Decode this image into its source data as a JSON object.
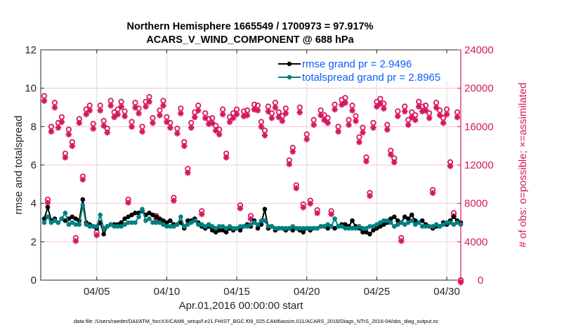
{
  "chart_data": {
    "type": "line",
    "title_lines": [
      "Northern Hemisphere 1665549 / 1700973 = 97.917%",
      "ACARS_V_WIND_COMPONENT @ 688 hPa"
    ],
    "xlabel": "Apr.01,2016 00:00:00 start",
    "ylabel_left": "rmse and totalspread",
    "ylabel_right": "# of obs: o=possible; ×=assimilated",
    "footnote": "data file: /Users/raeder/DAI/ATM_forcXX/CAM6_setup/f.e21.FHIST_BGC.f09_025.CAM6assim.011/ACARS_2016/Diags_NTrS_2016-04/obs_diag_output.nc",
    "x_unit": "days since Apr.01,2016 00:00:00",
    "xlim": [
      0,
      30
    ],
    "x_ticks": [
      4,
      9,
      14,
      19,
      24,
      29
    ],
    "x_tick_labels": [
      "04/05",
      "04/10",
      "04/15",
      "04/20",
      "04/25",
      "04/30"
    ],
    "ylim_left": [
      0,
      12
    ],
    "y_ticks_left": [
      0,
      2,
      4,
      6,
      8,
      10,
      12
    ],
    "ylim_right": [
      0,
      24000
    ],
    "y_ticks_right": [
      0,
      4000,
      8000,
      12000,
      16000,
      20000,
      24000
    ],
    "grid": true,
    "legend_position": "top-right",
    "colors": {
      "rmse": "#000000",
      "totalspread": "#008080",
      "obs": "#D6175F",
      "legend_text": "#0B5BFF",
      "right_axis": "#D6175F"
    },
    "x_step_days": 0.25,
    "x_start_day": 0.25,
    "series": [
      {
        "name": "rmse grand pr = 2.9496",
        "axis": "left",
        "values": [
          3.2,
          3.8,
          3.1,
          3.2,
          3.0,
          3.2,
          3.1,
          3.2,
          3.3,
          3.2,
          3.1,
          4.2,
          3.0,
          2.9,
          2.8,
          2.7,
          3.0,
          2.4,
          2.8,
          2.9,
          2.9,
          2.9,
          3.0,
          3.2,
          3.3,
          3.4,
          3.5,
          3.5,
          3.6,
          3.4,
          3.5,
          3.4,
          3.3,
          3.2,
          3.1,
          3.0,
          3.1,
          2.9,
          2.9,
          3.0,
          2.7,
          3.1,
          3.1,
          3.2,
          3.0,
          2.8,
          2.7,
          2.8,
          2.6,
          2.5,
          2.6,
          2.6,
          2.5,
          2.7,
          2.6,
          2.7,
          2.6,
          2.8,
          2.9,
          2.8,
          3.1,
          2.7,
          2.9,
          3.7,
          2.7,
          2.8,
          2.6,
          2.7,
          2.7,
          2.6,
          2.7,
          2.6,
          2.7,
          2.6,
          2.5,
          2.7,
          2.6,
          2.7,
          2.7,
          2.8,
          2.8,
          2.7,
          2.8,
          2.7,
          2.8,
          2.9,
          2.9,
          2.8,
          3.1,
          2.8,
          2.7,
          2.5,
          2.5,
          2.4,
          2.6,
          2.7,
          2.8,
          2.9,
          3.0,
          3.2,
          3.3,
          3.1,
          3.0,
          3.3,
          3.2,
          3.4,
          3.1,
          3.0,
          3.1,
          2.9,
          2.8,
          2.7,
          2.8,
          2.8,
          3.0,
          2.9,
          3.1,
          3.3,
          3.1,
          3.0
        ]
      },
      {
        "name": "totalspread grand pr = 2.8965",
        "axis": "left",
        "values": [
          3.0,
          3.3,
          3.0,
          3.1,
          3.0,
          3.2,
          3.5,
          2.9,
          3.0,
          2.9,
          2.9,
          3.9,
          2.9,
          2.8,
          2.8,
          2.8,
          3.4,
          2.7,
          2.8,
          2.9,
          2.8,
          2.8,
          2.8,
          2.9,
          3.0,
          3.0,
          3.0,
          3.3,
          3.7,
          3.1,
          3.2,
          3.0,
          3.0,
          3.0,
          2.9,
          2.8,
          2.8,
          2.8,
          2.9,
          3.3,
          2.8,
          2.9,
          3.0,
          3.1,
          2.9,
          2.9,
          2.8,
          2.9,
          2.8,
          2.7,
          2.8,
          2.8,
          2.7,
          2.8,
          2.7,
          2.7,
          2.8,
          2.8,
          2.8,
          2.9,
          3.0,
          2.9,
          3.1,
          3.1,
          2.8,
          2.8,
          2.7,
          2.7,
          2.7,
          2.7,
          2.7,
          2.8,
          2.7,
          2.7,
          2.7,
          2.7,
          2.7,
          2.7,
          2.7,
          2.8,
          2.8,
          2.9,
          2.8,
          3.2,
          2.8,
          2.8,
          2.7,
          2.7,
          2.7,
          2.7,
          2.8,
          2.7,
          2.7,
          2.8,
          2.8,
          2.9,
          3.0,
          3.1,
          3.1,
          3.0,
          2.8,
          2.9,
          3.0,
          2.9,
          3.0,
          3.1,
          2.9,
          3.0,
          2.8,
          2.8,
          2.8,
          2.8,
          2.9,
          2.8,
          2.9,
          3.0,
          3.0,
          2.9,
          3.0,
          2.9
        ]
      },
      {
        "name": "# obs possible",
        "axis": "right",
        "marker": "o",
        "values": [
          19200,
          8400,
          16000,
          18500,
          16400,
          17000,
          13200,
          15700,
          14400,
          4400,
          16800,
          10800,
          17800,
          18200,
          16300,
          5000,
          18200,
          16600,
          15800,
          18700,
          17500,
          17800,
          18600,
          17600,
          8400,
          16500,
          18500,
          17900,
          16000,
          18600,
          19100,
          16900,
          6700,
          17700,
          18700,
          17000,
          16400,
          8600,
          15800,
          17900,
          14400,
          11600,
          16400,
          17500,
          18200,
          7200,
          17400,
          16800,
          16900,
          16100,
          15700,
          17800,
          13200,
          17000,
          17400,
          17800,
          7800,
          17600,
          17700,
          6700,
          18300,
          18200,
          16500,
          15600,
          18100,
          17400,
          18500,
          17500,
          17100,
          17900,
          12500,
          13800,
          9900,
          18000,
          7900,
          15200,
          8300,
          16700,
          7300,
          17700,
          17200,
          16900,
          7200,
          18300,
          16000,
          18800,
          19000,
          16700,
          18200,
          17100,
          14900,
          15900,
          12800,
          9100,
          16400,
          18600,
          18900,
          18400,
          16200,
          13500,
          12700,
          17600,
          4400,
          18100,
          16700,
          17500,
          17200,
          18600,
          18100,
          18200,
          17400,
          9400,
          18500,
          17700,
          16900,
          17800,
          12300,
          7000,
          17500,
          0
        ]
      },
      {
        "name": "# obs assimilated",
        "axis": "right",
        "marker": "*",
        "values": [
          18900,
          8300,
          15700,
          18200,
          16100,
          16700,
          13000,
          15400,
          14200,
          4300,
          16600,
          10700,
          17500,
          17900,
          16000,
          4900,
          17900,
          16300,
          15600,
          18400,
          17200,
          17500,
          18300,
          17300,
          8300,
          16200,
          18200,
          17600,
          15700,
          18300,
          18800,
          16600,
          6600,
          17400,
          18400,
          16700,
          16100,
          8500,
          15500,
          17600,
          14200,
          11400,
          16100,
          17200,
          17900,
          7100,
          17100,
          16500,
          16600,
          15800,
          15400,
          17500,
          13000,
          16700,
          17100,
          17500,
          7700,
          17300,
          17400,
          6600,
          18000,
          17900,
          16200,
          15300,
          17800,
          17100,
          18200,
          17200,
          16800,
          17600,
          12300,
          13600,
          9800,
          17700,
          7800,
          14900,
          8200,
          16400,
          7200,
          17400,
          16900,
          16600,
          7100,
          18000,
          15700,
          18500,
          18700,
          16400,
          17900,
          16800,
          14600,
          15600,
          12600,
          9000,
          16100,
          18300,
          18600,
          18100,
          15900,
          13300,
          12500,
          17300,
          4300,
          17800,
          16400,
          17200,
          16900,
          18300,
          17800,
          17900,
          17100,
          9300,
          18200,
          17400,
          16600,
          17500,
          12100,
          6900,
          17200,
          0
        ]
      }
    ]
  }
}
